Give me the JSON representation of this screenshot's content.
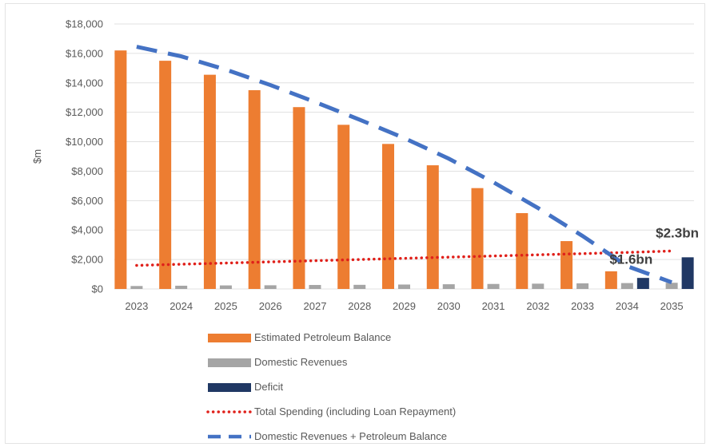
{
  "chart_data": {
    "type": "bar",
    "ylabel": "$m",
    "ylim": [
      0,
      18000
    ],
    "yticks": [
      "$0",
      "$2,000",
      "$4,000",
      "$6,000",
      "$8,000",
      "$10,000",
      "$12,000",
      "$14,000",
      "$16,000",
      "$18,000"
    ],
    "categories": [
      "2023",
      "2024",
      "2025",
      "2026",
      "2027",
      "2028",
      "2029",
      "2030",
      "2031",
      "2032",
      "2033",
      "2034",
      "2035"
    ],
    "grid": true,
    "legend_position": "bottom",
    "series": [
      {
        "name": "Estimated Petroleum Balance",
        "type": "bar",
        "color": "#ED7D31",
        "values": [
          16200,
          15500,
          14550,
          13500,
          12350,
          11150,
          9850,
          8400,
          6850,
          5150,
          3250,
          1200,
          0
        ]
      },
      {
        "name": "Domestic Revenues",
        "type": "bar",
        "color": "#A5A5A5",
        "values": [
          200,
          220,
          240,
          250,
          270,
          280,
          300,
          320,
          340,
          360,
          380,
          400,
          420
        ]
      },
      {
        "name": "Deficit",
        "type": "bar",
        "color": "#203864",
        "values": [
          0,
          0,
          0,
          0,
          0,
          0,
          0,
          0,
          0,
          0,
          0,
          750,
          2150
        ]
      },
      {
        "name": "Total Spending (including Loan Repayment)",
        "type": "line",
        "style": "dotted",
        "color": "#E0201A",
        "values": [
          1600,
          1680,
          1760,
          1840,
          1920,
          2000,
          2080,
          2160,
          2240,
          2320,
          2400,
          2480,
          2580
        ]
      },
      {
        "name": "Domestic Revenues + Petroleum Balance",
        "type": "line",
        "style": "dashed",
        "color": "#4472C4",
        "values": [
          16450,
          15800,
          14900,
          13850,
          12700,
          11500,
          10250,
          8850,
          7250,
          5500,
          3600,
          1550,
          450
        ]
      }
    ],
    "annotations": [
      {
        "text": "$1.6bn",
        "x": "2034",
        "y": 1600
      },
      {
        "text": "$2.3bn",
        "x": "2035",
        "y": 2300
      }
    ]
  }
}
